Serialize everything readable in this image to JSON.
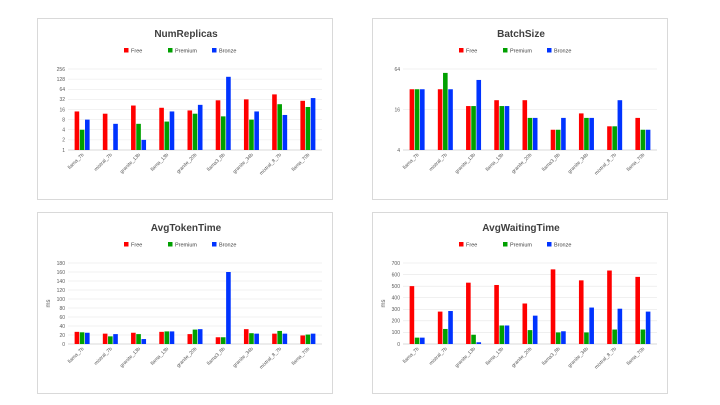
{
  "colors": {
    "free": "#ff0000",
    "premium": "#00a000",
    "bronze": "#0033ff"
  },
  "chart_data": [
    {
      "id": "numreplicas",
      "type": "bar",
      "title": "NumReplicas",
      "ylabel": "",
      "scale": "log2",
      "yticks": [
        "1",
        "2",
        "4",
        "8",
        "16",
        "32",
        "64",
        "128",
        "256"
      ],
      "ylim": [
        1,
        256
      ],
      "legend": "top",
      "categories": [
        "llama_7b",
        "mistral_7b",
        "granite_13b",
        "llama_13b",
        "granite_20b",
        "llama3_8b",
        "granite_34b",
        "mixtral_8_7b",
        "llama_70b"
      ],
      "series": [
        {
          "name": "Free",
          "values": [
            14,
            12,
            21,
            18,
            15,
            30,
            32,
            45,
            29
          ]
        },
        {
          "name": "Premium",
          "values": [
            4,
            0,
            6,
            7,
            12,
            10,
            8,
            23,
            19
          ]
        },
        {
          "name": "Bronze",
          "values": [
            8,
            6,
            2,
            14,
            22,
            150,
            14,
            11,
            35
          ]
        }
      ]
    },
    {
      "id": "batchsize",
      "type": "bar",
      "title": "BatchSize",
      "ylabel": "",
      "scale": "log2",
      "yticks": [
        "4",
        "16",
        "64"
      ],
      "ylim": [
        4,
        64
      ],
      "legend": "top",
      "categories": [
        "llama_7b",
        "mistral_7b",
        "granite_13b",
        "llama_13b",
        "granite_20b",
        "llama3_8b",
        "granite_34b",
        "mixtral_8_7b",
        "llama_70b"
      ],
      "series": [
        {
          "name": "Free",
          "values": [
            32,
            32,
            18,
            22,
            22,
            8,
            14,
            9,
            12
          ]
        },
        {
          "name": "Premium",
          "values": [
            32,
            56,
            18,
            18,
            12,
            8,
            12,
            9,
            8
          ]
        },
        {
          "name": "Bronze",
          "values": [
            32,
            32,
            44,
            18,
            12,
            12,
            12,
            22,
            8
          ]
        }
      ]
    },
    {
      "id": "avgtokentime",
      "type": "bar",
      "title": "AvgTokenTime",
      "ylabel": "ms",
      "scale": "linear",
      "yticks": [
        "0",
        "20",
        "40",
        "60",
        "80",
        "100",
        "120",
        "140",
        "160",
        "180"
      ],
      "ylim": [
        0,
        180
      ],
      "legend": "top",
      "categories": [
        "llama_7b",
        "mistral_7b",
        "granite_13b",
        "llama_13b",
        "granite_20b",
        "llama3_8b",
        "granite_34b",
        "mixtral_8_7b",
        "llama_70b"
      ],
      "series": [
        {
          "name": "Free",
          "values": [
            27,
            23,
            25,
            27,
            22,
            15,
            33,
            23,
            19
          ]
        },
        {
          "name": "Premium",
          "values": [
            26,
            17,
            22,
            28,
            32,
            15,
            24,
            29,
            21
          ]
        },
        {
          "name": "Bronze",
          "values": [
            25,
            22,
            11,
            28,
            33,
            160,
            23,
            23,
            23
          ]
        }
      ]
    },
    {
      "id": "avgwaitingtime",
      "type": "bar",
      "title": "AvgWaitingTime",
      "ylabel": "ms",
      "scale": "linear",
      "yticks": [
        "0",
        "100",
        "200",
        "300",
        "400",
        "500",
        "600",
        "700"
      ],
      "ylim": [
        0,
        700
      ],
      "legend": "top",
      "categories": [
        "llama_7b",
        "mistral_7b",
        "granite_13b",
        "llama_13b",
        "granite_20b",
        "llama3_8b",
        "granite_34b",
        "mixtral_8_7b",
        "llama_70b"
      ],
      "series": [
        {
          "name": "Free",
          "values": [
            500,
            280,
            530,
            510,
            350,
            645,
            550,
            635,
            580
          ]
        },
        {
          "name": "Premium",
          "values": [
            55,
            130,
            80,
            160,
            120,
            100,
            100,
            125,
            125
          ]
        },
        {
          "name": "Bronze",
          "values": [
            55,
            285,
            15,
            160,
            245,
            110,
            315,
            305,
            280
          ]
        }
      ]
    }
  ]
}
